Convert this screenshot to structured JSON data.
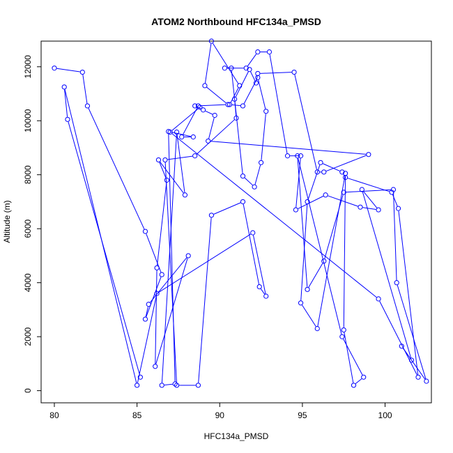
{
  "chart_data": {
    "type": "scatter",
    "title": "ATOM2 Northbound HFC134a_PMSD",
    "xlabel": "HFC134a_PMSD",
    "ylabel": "Altitude (m)",
    "xlim": [
      79.2,
      102.8
    ],
    "ylim": [
      -450,
      12950
    ],
    "xticks": [
      "80",
      "85",
      "90",
      "95",
      "100"
    ],
    "yticks": [
      "0",
      "2000",
      "4000",
      "6000",
      "8000",
      "10000",
      "12000"
    ],
    "xtick_values": [
      80,
      85,
      90,
      95,
      100
    ],
    "ytick_values": [
      0,
      2000,
      4000,
      6000,
      8000,
      10000,
      12000
    ],
    "grid": false,
    "legend": "none",
    "line_color": "#0000ff",
    "marker": "open-circle",
    "series": [
      {
        "x": [
          80.0,
          81.7,
          82.0,
          85.5,
          86.5,
          85.5,
          85.7,
          88.1,
          86.1,
          86.2,
          86.8,
          86.3,
          87.9,
          87.4,
          86.5,
          87.3,
          86.9,
          88.4,
          87.7,
          88.7,
          90.5,
          89.1,
          89.5,
          91.2,
          90.6,
          91.4,
          92.3,
          92.8,
          92.5,
          92.1,
          91.4,
          90.7,
          90.3,
          91.6,
          92.3,
          93.0,
          94.1,
          94.9,
          94.6,
          96.4,
          98.5,
          99.6,
          98.6,
          101.6,
          101.0,
          102.5,
          100.7,
          100.5,
          97.5,
          96.3,
          95.3,
          94.7,
          97.4,
          98.7,
          98.1,
          97.5,
          97.6,
          95.9,
          94.9,
          95.3,
          96.1,
          97.4,
          97.6,
          100.4,
          100.8,
          102.0,
          99.6,
          87.0,
          88.8,
          88.5,
          89.0,
          89.7,
          89.3,
          99.0,
          96.3,
          95.9,
          94.5,
          92.3,
          92.2,
          91.8,
          90.9,
          91.0,
          88.5,
          86.7,
          87.4,
          88.7,
          89.5,
          91.4,
          92.4,
          92.8,
          92.0,
          86.2,
          85.0,
          80.6,
          80.8,
          85.2
        ],
        "y": [
          11950,
          11800,
          10550,
          5900,
          4300,
          2650,
          3200,
          5000,
          900,
          4550,
          7800,
          8550,
          7250,
          9580,
          200,
          250,
          9600,
          9400,
          9400,
          10550,
          10600,
          11300,
          12950,
          11300,
          10600,
          10550,
          11600,
          10350,
          8450,
          7550,
          7950,
          11950,
          11950,
          11950,
          12550,
          12550,
          8700,
          8700,
          6700,
          7250,
          6800,
          6700,
          7450,
          1130,
          1650,
          350,
          4000,
          7450,
          7350,
          4800,
          3750,
          8700,
          2000,
          500,
          200,
          2250,
          8050,
          2300,
          3250,
          7000,
          8450,
          8100,
          7900,
          7350,
          6750,
          500,
          3400,
          9580,
          10500,
          10550,
          10400,
          10200,
          9250,
          8750,
          8100,
          8100,
          11800,
          11750,
          11400,
          11900,
          10800,
          10100,
          8700,
          8550,
          200,
          200,
          6500,
          7000,
          3850,
          3500,
          5850,
          3600,
          200,
          11250,
          10050,
          500
        ]
      }
    ]
  }
}
